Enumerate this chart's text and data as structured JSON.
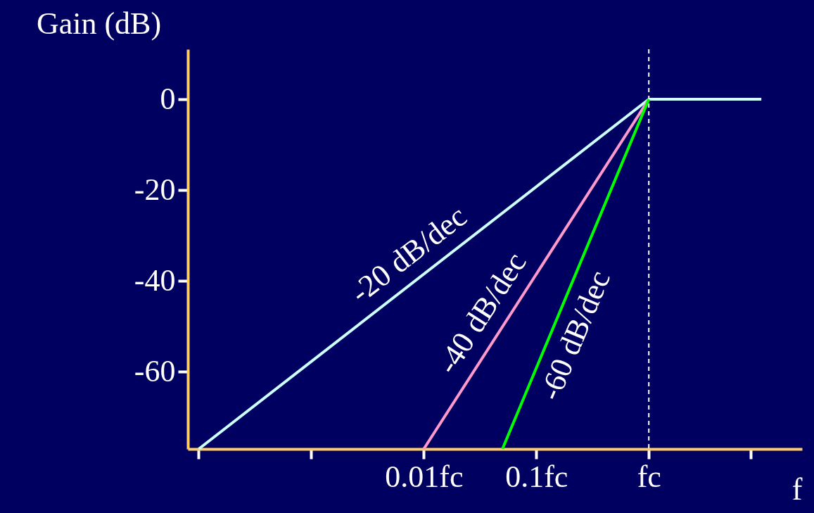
{
  "chart_data": {
    "type": "line",
    "ylabel": "Gain (dB)",
    "xlabel": "f",
    "log": "x",
    "xlim": [
      8e-05,
      23
    ],
    "xticks": [
      {
        "value": 0.0001,
        "label": null
      },
      {
        "value": 0.001,
        "label": null
      },
      {
        "value": 0.01,
        "label": "0.01fc"
      },
      {
        "value": 0.1,
        "label": "0.1fc"
      },
      {
        "value": 1,
        "label": "fc"
      },
      {
        "value": 8,
        "label": null
      }
    ],
    "ylim": [
      -77,
      11
    ],
    "yticks": [
      0,
      -20,
      -40,
      -60
    ],
    "grid": false,
    "line_style": "solid",
    "marker": "none",
    "series": [
      {
        "color": "#ccffff",
        "x": [
          0.0001,
          1,
          10
        ],
        "values": [
          -77,
          0,
          0
        ]
      },
      {
        "color": "#ff99cc",
        "x": [
          0.01,
          1
        ],
        "values": [
          -77,
          0
        ]
      },
      {
        "color": "#00ff00",
        "x": [
          0.05,
          1
        ],
        "values": [
          -77,
          0
        ]
      }
    ],
    "ref_lines": [
      {
        "axis": "x",
        "value": 1,
        "color": "#ffffff",
        "line_style": "dashed"
      }
    ],
    "annotations": [
      "-20 dB/dec",
      "-40 dB/dec",
      "-60 dB/dec"
    ]
  }
}
